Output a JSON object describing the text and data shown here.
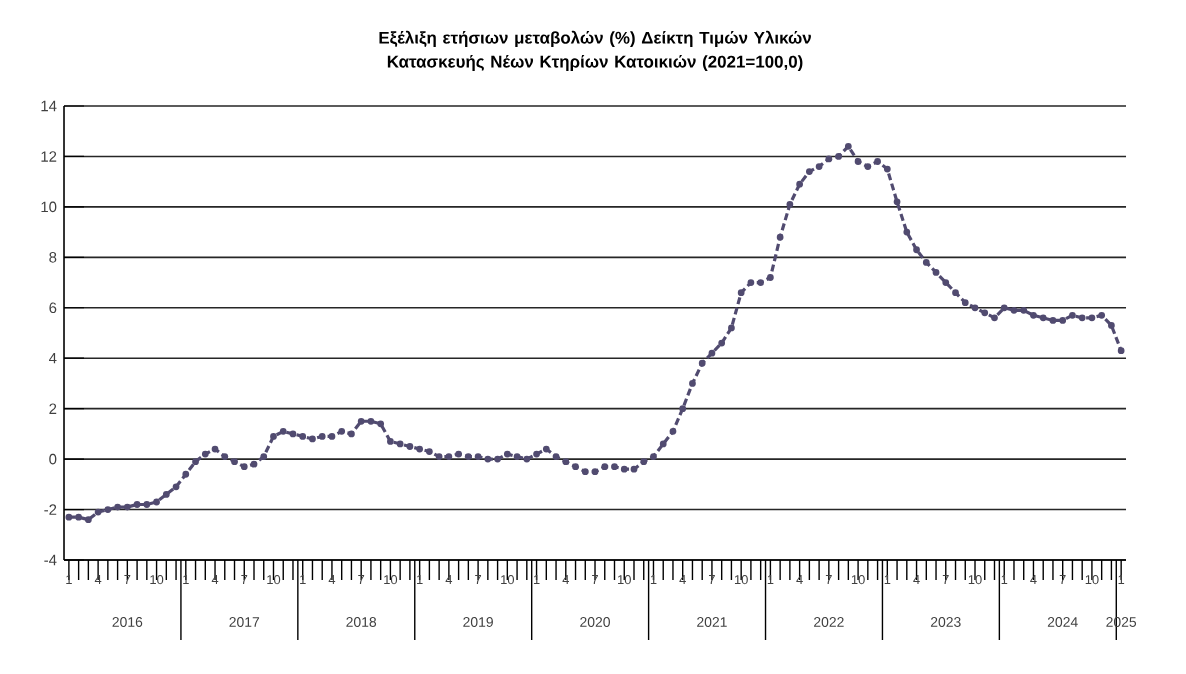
{
  "chart_data": {
    "type": "line",
    "title": "Εξέλιξη ετήσιων μεταβολών (%) Δείκτη Τιμών Υλικών Κατασκευής Νέων Κτηρίων Κατοικιών (2021=100,0)",
    "x": [
      "2016-01",
      "2016-02",
      "2016-03",
      "2016-04",
      "2016-05",
      "2016-06",
      "2016-07",
      "2016-08",
      "2016-09",
      "2016-10",
      "2016-11",
      "2016-12",
      "2017-01",
      "2017-02",
      "2017-03",
      "2017-04",
      "2017-05",
      "2017-06",
      "2017-07",
      "2017-08",
      "2017-09",
      "2017-10",
      "2017-11",
      "2017-12",
      "2018-01",
      "2018-02",
      "2018-03",
      "2018-04",
      "2018-05",
      "2018-06",
      "2018-07",
      "2018-08",
      "2018-09",
      "2018-10",
      "2018-11",
      "2018-12",
      "2019-01",
      "2019-02",
      "2019-03",
      "2019-04",
      "2019-05",
      "2019-06",
      "2019-07",
      "2019-08",
      "2019-09",
      "2019-10",
      "2019-11",
      "2019-12",
      "2020-01",
      "2020-02",
      "2020-03",
      "2020-04",
      "2020-05",
      "2020-06",
      "2020-07",
      "2020-08",
      "2020-09",
      "2020-10",
      "2020-11",
      "2020-12",
      "2021-01",
      "2021-02",
      "2021-03",
      "2021-04",
      "2021-05",
      "2021-06",
      "2021-07",
      "2021-08",
      "2021-09",
      "2021-10",
      "2021-11",
      "2021-12",
      "2022-01",
      "2022-02",
      "2022-03",
      "2022-04",
      "2022-05",
      "2022-06",
      "2022-07",
      "2022-08",
      "2022-09",
      "2022-10",
      "2022-11",
      "2022-12",
      "2023-01",
      "2023-02",
      "2023-03",
      "2023-04",
      "2023-05",
      "2023-06",
      "2023-07",
      "2023-08",
      "2023-09",
      "2023-10",
      "2023-11",
      "2023-12",
      "2024-01",
      "2024-02",
      "2024-03",
      "2024-04",
      "2024-05",
      "2024-06",
      "2024-07",
      "2024-08",
      "2024-09",
      "2024-10",
      "2024-11",
      "2024-12",
      "2025-01"
    ],
    "series": [
      {
        "color": "#514b70",
        "values": [
          -2.3,
          -2.3,
          -2.4,
          -2.1,
          -2.0,
          -1.9,
          -1.9,
          -1.8,
          -1.8,
          -1.7,
          -1.4,
          -1.1,
          -0.6,
          -0.1,
          0.2,
          0.4,
          0.1,
          -0.1,
          -0.3,
          -0.2,
          0.1,
          0.9,
          1.1,
          1.0,
          0.9,
          0.8,
          0.9,
          0.9,
          1.1,
          1.0,
          1.5,
          1.5,
          1.4,
          0.7,
          0.6,
          0.5,
          0.4,
          0.3,
          0.1,
          0.1,
          0.2,
          0.1,
          0.1,
          0.0,
          0.0,
          0.2,
          0.1,
          0.0,
          0.2,
          0.4,
          0.1,
          -0.1,
          -0.3,
          -0.5,
          -0.5,
          -0.3,
          -0.3,
          -0.4,
          -0.4,
          -0.1,
          0.1,
          0.6,
          1.1,
          2.0,
          3.0,
          3.8,
          4.2,
          4.6,
          5.2,
          6.6,
          7.0,
          7.0,
          7.2,
          8.8,
          10.1,
          10.9,
          11.4,
          11.6,
          11.9,
          12.0,
          12.4,
          11.8,
          11.6,
          11.8,
          11.5,
          10.2,
          9.0,
          8.3,
          7.8,
          7.4,
          7.0,
          6.6,
          6.2,
          6.0,
          5.8,
          5.6,
          6.0,
          5.9,
          5.9,
          5.7,
          5.6,
          5.5,
          5.5,
          5.7,
          5.6,
          5.6,
          5.7,
          5.3,
          4.3
        ]
      }
    ],
    "ylim": [
      -4,
      14
    ],
    "yticks": [
      -4,
      -2,
      0,
      2,
      4,
      6,
      8,
      10,
      12,
      14
    ],
    "xlim": [
      "2016-01",
      "2025-01"
    ],
    "xticks": [
      {
        "value": "2016-01",
        "label": "1"
      },
      {
        "value": "2016-02",
        "label": null
      },
      {
        "value": "2016-03",
        "label": null
      },
      {
        "value": "2016-04",
        "label": "4"
      },
      {
        "value": "2016-05",
        "label": null
      },
      {
        "value": "2016-06",
        "label": null
      },
      {
        "value": "2016-07",
        "label": "7"
      },
      {
        "value": "2016-08",
        "label": null
      },
      {
        "value": "2016-09",
        "label": null
      },
      {
        "value": "2016-10",
        "label": "10"
      },
      {
        "value": "2016-11",
        "label": null
      },
      {
        "value": "2016-12",
        "label": null
      },
      {
        "value": "2017-01",
        "label": "1"
      },
      {
        "value": "2017-02",
        "label": null
      },
      {
        "value": "2017-03",
        "label": null
      },
      {
        "value": "2017-04",
        "label": "4"
      },
      {
        "value": "2017-05",
        "label": null
      },
      {
        "value": "2017-06",
        "label": null
      },
      {
        "value": "2017-07",
        "label": "7"
      },
      {
        "value": "2017-08",
        "label": null
      },
      {
        "value": "2017-09",
        "label": null
      },
      {
        "value": "2017-10",
        "label": "10"
      },
      {
        "value": "2017-11",
        "label": null
      },
      {
        "value": "2017-12",
        "label": null
      },
      {
        "value": "2018-01",
        "label": "1"
      },
      {
        "value": "2018-02",
        "label": null
      },
      {
        "value": "2018-03",
        "label": null
      },
      {
        "value": "2018-04",
        "label": "4"
      },
      {
        "value": "2018-05",
        "label": null
      },
      {
        "value": "2018-06",
        "label": null
      },
      {
        "value": "2018-07",
        "label": "7"
      },
      {
        "value": "2018-08",
        "label": null
      },
      {
        "value": "2018-09",
        "label": null
      },
      {
        "value": "2018-10",
        "label": "10"
      },
      {
        "value": "2018-11",
        "label": null
      },
      {
        "value": "2018-12",
        "label": null
      },
      {
        "value": "2019-01",
        "label": "1"
      },
      {
        "value": "2019-02",
        "label": null
      },
      {
        "value": "2019-03",
        "label": null
      },
      {
        "value": "2019-04",
        "label": "4"
      },
      {
        "value": "2019-05",
        "label": null
      },
      {
        "value": "2019-06",
        "label": null
      },
      {
        "value": "2019-07",
        "label": "7"
      },
      {
        "value": "2019-08",
        "label": null
      },
      {
        "value": "2019-09",
        "label": null
      },
      {
        "value": "2019-10",
        "label": "10"
      },
      {
        "value": "2019-11",
        "label": null
      },
      {
        "value": "2019-12",
        "label": null
      },
      {
        "value": "2020-01",
        "label": "1"
      },
      {
        "value": "2020-02",
        "label": null
      },
      {
        "value": "2020-03",
        "label": null
      },
      {
        "value": "2020-04",
        "label": "4"
      },
      {
        "value": "2020-05",
        "label": null
      },
      {
        "value": "2020-06",
        "label": null
      },
      {
        "value": "2020-07",
        "label": "7"
      },
      {
        "value": "2020-08",
        "label": null
      },
      {
        "value": "2020-09",
        "label": null
      },
      {
        "value": "2020-10",
        "label": "10"
      },
      {
        "value": "2020-11",
        "label": null
      },
      {
        "value": "2020-12",
        "label": null
      },
      {
        "value": "2021-01",
        "label": "1"
      },
      {
        "value": "2021-02",
        "label": null
      },
      {
        "value": "2021-03",
        "label": null
      },
      {
        "value": "2021-04",
        "label": "4"
      },
      {
        "value": "2021-05",
        "label": null
      },
      {
        "value": "2021-06",
        "label": null
      },
      {
        "value": "2021-07",
        "label": "7"
      },
      {
        "value": "2021-08",
        "label": null
      },
      {
        "value": "2021-09",
        "label": null
      },
      {
        "value": "2021-10",
        "label": "10"
      },
      {
        "value": "2021-11",
        "label": null
      },
      {
        "value": "2021-12",
        "label": null
      },
      {
        "value": "2022-01",
        "label": "1"
      },
      {
        "value": "2022-02",
        "label": null
      },
      {
        "value": "2022-03",
        "label": null
      },
      {
        "value": "2022-04",
        "label": "4"
      },
      {
        "value": "2022-05",
        "label": null
      },
      {
        "value": "2022-06",
        "label": null
      },
      {
        "value": "2022-07",
        "label": "7"
      },
      {
        "value": "2022-08",
        "label": null
      },
      {
        "value": "2022-09",
        "label": null
      },
      {
        "value": "2022-10",
        "label": "10"
      },
      {
        "value": "2022-11",
        "label": null
      },
      {
        "value": "2022-12",
        "label": null
      },
      {
        "value": "2023-01",
        "label": "1"
      },
      {
        "value": "2023-02",
        "label": null
      },
      {
        "value": "2023-03",
        "label": null
      },
      {
        "value": "2023-04",
        "label": "4"
      },
      {
        "value": "2023-05",
        "label": null
      },
      {
        "value": "2023-06",
        "label": null
      },
      {
        "value": "2023-07",
        "label": "7"
      },
      {
        "value": "2023-08",
        "label": null
      },
      {
        "value": "2023-09",
        "label": null
      },
      {
        "value": "2023-10",
        "label": "10"
      },
      {
        "value": "2023-11",
        "label": null
      },
      {
        "value": "2023-12",
        "label": null
      },
      {
        "value": "2024-01",
        "label": "1"
      },
      {
        "value": "2024-02",
        "label": null
      },
      {
        "value": "2024-03",
        "label": null
      },
      {
        "value": "2024-04",
        "label": "4"
      },
      {
        "value": "2024-05",
        "label": null
      },
      {
        "value": "2024-06",
        "label": null
      },
      {
        "value": "2024-07",
        "label": "7"
      },
      {
        "value": "2024-08",
        "label": null
      },
      {
        "value": "2024-09",
        "label": null
      },
      {
        "value": "2024-10",
        "label": "10"
      },
      {
        "value": "2024-11",
        "label": null
      },
      {
        "value": "2024-12",
        "label": null
      },
      {
        "value": "2025-01",
        "label": "1"
      }
    ],
    "annotations": [
      "2016",
      "2017",
      "2018",
      "2019",
      "2020",
      "2021",
      "2022",
      "2023",
      "2024",
      "2025"
    ],
    "grid": "y",
    "marker": "circle",
    "line_style": "dashed"
  }
}
